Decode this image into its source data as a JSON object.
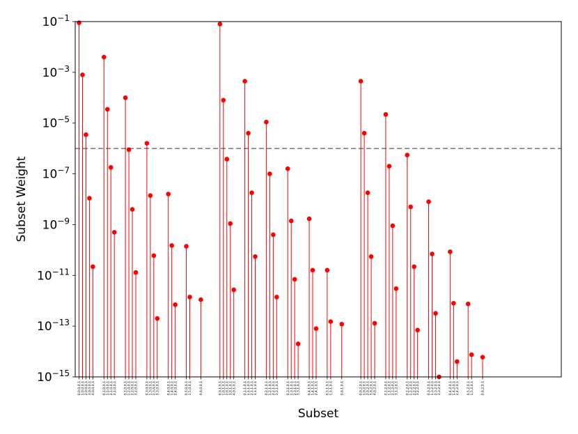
{
  "chart_data": {
    "type": "scatter",
    "style": "stem",
    "xlabel": "Subset",
    "ylabel": "Subset Weight",
    "yscale": "log",
    "ylim": [
      1e-15,
      0.1
    ],
    "yticks": [
      {
        "value": 1e-15,
        "base": "10",
        "exp": "−15"
      },
      {
        "value": 1e-13,
        "base": "10",
        "exp": "−13"
      },
      {
        "value": 1e-11,
        "base": "10",
        "exp": "−11"
      },
      {
        "value": 1e-09,
        "base": "10",
        "exp": "−9"
      },
      {
        "value": 1e-07,
        "base": "10",
        "exp": "−7"
      },
      {
        "value": 1e-05,
        "base": "10",
        "exp": "−5"
      },
      {
        "value": 0.001,
        "base": "10",
        "exp": "−3"
      },
      {
        "value": 0.1,
        "base": "10",
        "exp": "−1"
      }
    ],
    "threshold": 1e-06,
    "grid": false,
    "colors": {
      "stem": "#ff0000",
      "marker": "#ff0000",
      "threshold": "#333333",
      "axis": "#000000"
    },
    "categories": [
      "0,0,0,0,1",
      "1,0,0,0,1",
      "2,0,0,0,1",
      "3,0,0,0,1",
      "4,0,0,0,1",
      "0,1,0,0,1",
      "1,1,0,0,1",
      "2,1,0,0,1",
      "3,1,0,0,1",
      "0,2,0,0,1",
      "1,2,0,0,1",
      "2,2,0,0,1",
      "3,2,0,0,1",
      "0,3,0,0,1",
      "1,3,0,0,1",
      "2,3,0,0,1",
      "3,3,0,0,1",
      "0,4,0,0,1",
      "1,4,0,0,1",
      "2,4,0,0,1",
      "0,5,0,0,1",
      "1,5,0,0,1",
      "0,6,0,0,1",
      "0,0,1,0,1",
      "1,0,1,0,1",
      "2,0,1,0,1",
      "3,0,1,0,1",
      "4,0,1,0,1",
      "0,1,1,0,1",
      "1,1,1,0,1",
      "2,1,1,0,1",
      "3,1,1,0,1",
      "0,2,1,0,1",
      "1,2,1,0,1",
      "2,2,1,0,1",
      "3,2,1,0,1",
      "0,3,1,0,1",
      "1,3,1,0,1",
      "2,3,1,0,1",
      "3,3,1,0,1",
      "0,4,1,0,1",
      "1,4,1,0,1",
      "2,4,1,0,1",
      "0,5,1,0,1",
      "1,5,1,0,1",
      "0,6,1,0,1",
      "0,0,2,0,1",
      "1,0,2,0,1",
      "2,0,2,0,1",
      "3,0,2,0,1",
      "4,0,2,0,1",
      "0,1,2,0,1",
      "1,1,2,0,1",
      "2,1,2,0,1",
      "3,1,2,0,1",
      "0,2,2,0,1",
      "1,2,2,0,1",
      "2,2,2,0,1",
      "3,2,2,0,1",
      "0,3,2,0,1",
      "1,3,2,0,1",
      "2,3,2,0,1",
      "3,3,2,0,1",
      "0,4,2,0,1",
      "1,4,2,0,1",
      "2,4,2,0,1",
      "0,5,2,0,1",
      "1,5,2,0,1",
      "0,6,2,0,1"
    ],
    "values": [
      0.09,
      0.0008,
      3.5e-06,
      1.1e-08,
      2.2e-11,
      0.004,
      3.5e-05,
      1.8e-07,
      5e-10,
      0.0001,
      9e-07,
      4e-09,
      1.3e-11,
      1.6e-06,
      1.4e-08,
      6e-11,
      2e-13,
      1.6e-08,
      1.5e-10,
      7e-13,
      1.4e-10,
      1.4e-12,
      1.1e-12,
      0.08,
      8e-05,
      3.8e-07,
      1.1e-09,
      2.7e-12,
      0.00045,
      4e-06,
      1.8e-08,
      5.5e-11,
      1.1e-05,
      1e-07,
      4e-10,
      1.4e-12,
      1.6e-07,
      1.4e-09,
      7e-12,
      2e-14,
      1.7e-09,
      1.6e-11,
      8e-14,
      1.6e-11,
      1.5e-13,
      1.2e-13,
      0.00045,
      4e-06,
      1.8e-08,
      5.5e-11,
      1.3e-13,
      2.2e-05,
      2e-07,
      9e-10,
      3e-12,
      5.5e-07,
      5e-09,
      2.2e-11,
      7e-14,
      8e-09,
      7e-11,
      3.2e-13,
      1e-15,
      8.5e-11,
      8e-13,
      4e-15,
      7.5e-13,
      7.5e-15,
      6e-15
    ]
  }
}
